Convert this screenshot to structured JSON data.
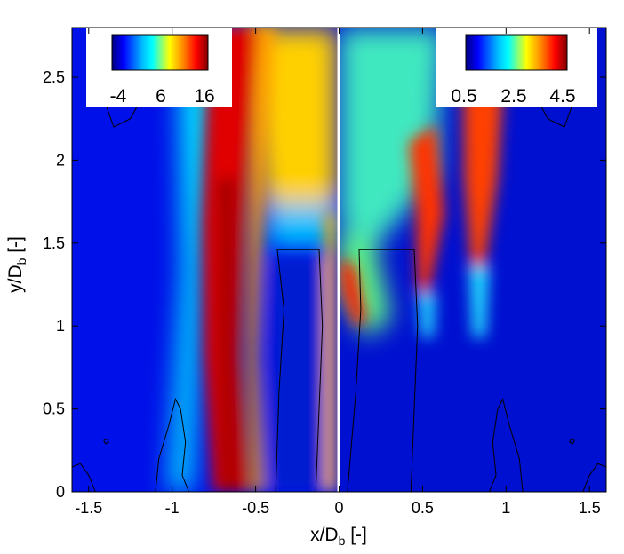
{
  "chart_data": {
    "type": "heatmap",
    "xlabel": {
      "main": "x/D",
      "sub": "b",
      "unit": " [-]"
    },
    "ylabel": {
      "main": "y/D",
      "sub": "b",
      "unit": " [-]"
    },
    "xlim": [
      -1.6,
      1.6
    ],
    "ylim": [
      0,
      2.8
    ],
    "xticks": [
      {
        "value": -1.5,
        "label": "-1.5"
      },
      {
        "value": -1,
        "label": "-1"
      },
      {
        "value": -0.5,
        "label": "-0.5"
      },
      {
        "value": 0,
        "label": "0"
      },
      {
        "value": 0.5,
        "label": "0.5"
      },
      {
        "value": 1,
        "label": "1"
      },
      {
        "value": 1.5,
        "label": "1.5"
      }
    ],
    "yticks": [
      {
        "value": 0,
        "label": "0"
      },
      {
        "value": 0.5,
        "label": "0.5"
      },
      {
        "value": 1,
        "label": "1"
      },
      {
        "value": 1.5,
        "label": "1.5"
      },
      {
        "value": 2,
        "label": "2"
      },
      {
        "value": 2.5,
        "label": "2.5"
      }
    ],
    "colormap": [
      "#000080",
      "#0000ff",
      "#00bfff",
      "#00ffff",
      "#ffff00",
      "#ff8000",
      "#ff0000",
      "#800000"
    ],
    "grid": false,
    "panels": [
      {
        "side": "left",
        "x_range": [
          -1.6,
          0
        ],
        "colorbar": {
          "ticks": [
            "-4",
            "6",
            "16"
          ],
          "placement": "top-left"
        },
        "features": [
          {
            "kind": "jet-band",
            "x_centers": [
              -0.52,
              -0.56,
              -0.6,
              -0.66
            ],
            "y_levels": [
              2.8,
              1.8,
              1.0,
              0.0
            ],
            "width": [
              0.42,
              0.36,
              0.32,
              0.22
            ]
          },
          {
            "kind": "recirculation-core",
            "x_range": [
              -0.45,
              -0.05
            ],
            "y_range": [
              0.0,
              1.45
            ]
          },
          {
            "kind": "upper-plume",
            "x_range": [
              -0.55,
              0.0
            ],
            "y_range": [
              1.5,
              2.8
            ]
          }
        ],
        "contours": [
          {
            "name": "recirculation-bubble",
            "points": [
              [
                -0.38,
                0
              ],
              [
                -0.36,
                0.6
              ],
              [
                -0.33,
                1.1
              ],
              [
                -0.37,
                1.46
              ],
              [
                -0.12,
                1.46
              ],
              [
                -0.1,
                1.0
              ],
              [
                -0.12,
                0.5
              ],
              [
                -0.14,
                0
              ]
            ]
          },
          {
            "name": "near-wall-lobe",
            "points": [
              [
                -1.1,
                0
              ],
              [
                -1.08,
                0.2
              ],
              [
                -1.02,
                0.4
              ],
              [
                -0.98,
                0.56
              ],
              [
                -0.95,
                0.5
              ],
              [
                -0.92,
                0.3
              ],
              [
                -0.94,
                0.1
              ],
              [
                -0.9,
                0
              ]
            ]
          },
          {
            "name": "corner-lobe",
            "points": [
              [
                -1.6,
                0.15
              ],
              [
                -1.55,
                0.17
              ],
              [
                -1.5,
                0.1
              ],
              [
                -1.46,
                0
              ]
            ]
          },
          {
            "name": "top-lobe",
            "points": [
              [
                -1.42,
                2.4
              ],
              [
                -1.35,
                2.2
              ],
              [
                -1.25,
                2.25
              ],
              [
                -1.18,
                2.38
              ]
            ]
          },
          {
            "name": "small-circle",
            "points": [
              [
                -1.41,
                0.31
              ],
              [
                -1.4,
                0.29
              ],
              [
                -1.38,
                0.3
              ],
              [
                -1.39,
                0.32
              ],
              [
                -1.41,
                0.31
              ]
            ]
          }
        ]
      },
      {
        "side": "right",
        "x_range": [
          0,
          1.6
        ],
        "colorbar": {
          "ticks": [
            "0.5",
            "2.5",
            "4.5"
          ],
          "placement": "top-right"
        },
        "features": [
          {
            "kind": "shear-layer-peak",
            "x": 0.1,
            "y": 1.3
          },
          {
            "kind": "shear-layer-peak",
            "x": 0.5,
            "y": 1.6
          },
          {
            "kind": "shear-layer-peak",
            "x": 0.82,
            "y": 1.8
          },
          {
            "kind": "upper-plume",
            "x_range": [
              0.0,
              0.6
            ],
            "y_range": [
              2.0,
              2.8
            ]
          }
        ],
        "contours": [
          {
            "name": "recirculation-bubble",
            "points": [
              [
                0.05,
                0
              ],
              [
                0.1,
                0.6
              ],
              [
                0.13,
                1.1
              ],
              [
                0.12,
                1.46
              ],
              [
                0.45,
                1.46
              ],
              [
                0.47,
                1.0
              ],
              [
                0.45,
                0.5
              ],
              [
                0.43,
                0
              ]
            ]
          },
          {
            "name": "near-wall-lobe",
            "points": [
              [
                0.9,
                0
              ],
              [
                0.94,
                0.1
              ],
              [
                0.92,
                0.3
              ],
              [
                0.95,
                0.5
              ],
              [
                0.98,
                0.56
              ],
              [
                1.02,
                0.4
              ],
              [
                1.08,
                0.2
              ],
              [
                1.1,
                0
              ]
            ]
          },
          {
            "name": "corner-lobe",
            "points": [
              [
                1.46,
                0
              ],
              [
                1.5,
                0.1
              ],
              [
                1.55,
                0.17
              ],
              [
                1.6,
                0.15
              ]
            ]
          },
          {
            "name": "top-lobe",
            "points": [
              [
                1.18,
                2.38
              ],
              [
                1.25,
                2.25
              ],
              [
                1.35,
                2.2
              ],
              [
                1.42,
                2.4
              ]
            ]
          },
          {
            "name": "small-circle",
            "points": [
              [
                1.41,
                0.31
              ],
              [
                1.4,
                0.29
              ],
              [
                1.38,
                0.3
              ],
              [
                1.39,
                0.32
              ],
              [
                1.41,
                0.31
              ]
            ]
          }
        ]
      }
    ]
  }
}
